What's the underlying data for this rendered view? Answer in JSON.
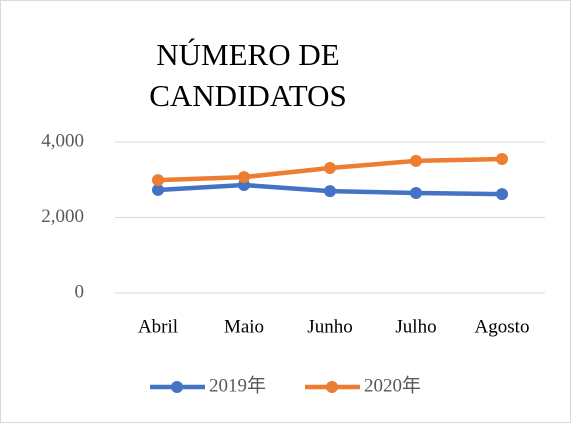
{
  "chart_data": {
    "type": "line",
    "title": "NÚMERO DE CANDIDATOS",
    "categories": [
      "Abril",
      "Maio",
      "Junho",
      "Julho",
      "Agosto"
    ],
    "series": [
      {
        "name": "2019年",
        "color": "#4472c4",
        "values": [
          2730,
          2860,
          2700,
          2650,
          2620
        ]
      },
      {
        "name": "2020年",
        "color": "#ed7d31",
        "values": [
          2990,
          3070,
          3310,
          3500,
          3550
        ]
      }
    ],
    "ylim": [
      0,
      4000
    ],
    "yticks": [
      0,
      {
        "value": 2000,
        "label": "2,000"
      },
      {
        "value": 4000,
        "label": "4,000"
      }
    ],
    "grid": true,
    "legend": "bottom"
  }
}
